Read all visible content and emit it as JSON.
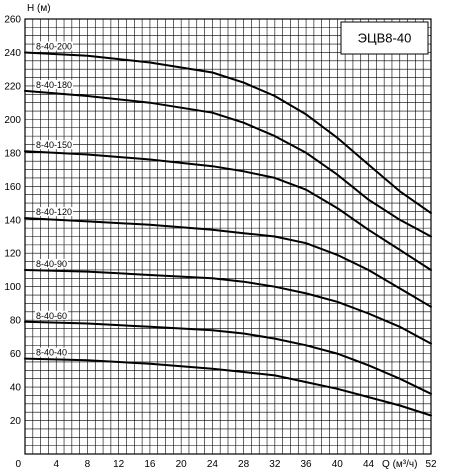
{
  "chart_data": {
    "type": "line",
    "title": "ЭЦВ8-40",
    "xlabel": "Q (м³/ч)",
    "ylabel": "H (м)",
    "xlim": [
      0,
      52
    ],
    "ylim": [
      0,
      260
    ],
    "x_ticks": [
      0,
      4,
      8,
      12,
      16,
      20,
      24,
      28,
      32,
      36,
      40,
      44,
      48,
      52
    ],
    "x_tick_labels": [
      "0",
      "4",
      "8",
      "12",
      "16",
      "20",
      "24",
      "28",
      "32",
      "36",
      "40",
      "44",
      "Q (м³/ч)",
      "52"
    ],
    "y_ticks": [
      20,
      40,
      60,
      80,
      100,
      120,
      140,
      160,
      180,
      200,
      220,
      240,
      260
    ],
    "grid": true,
    "series": [
      {
        "name": "8-40-200",
        "x": [
          0,
          8,
          16,
          24,
          28,
          32,
          36,
          40,
          44,
          48,
          52
        ],
        "y": [
          240,
          238,
          234,
          228,
          222,
          214,
          203,
          189,
          173,
          157,
          144
        ]
      },
      {
        "name": "8-40-180",
        "x": [
          0,
          8,
          16,
          24,
          28,
          32,
          36,
          40,
          44,
          48,
          52
        ],
        "y": [
          217,
          214,
          210,
          204,
          198,
          190,
          180,
          167,
          152,
          140,
          130
        ]
      },
      {
        "name": "8-40-150",
        "x": [
          0,
          8,
          16,
          24,
          28,
          32,
          36,
          40,
          44,
          48,
          52
        ],
        "y": [
          181,
          179,
          176,
          172,
          169,
          165,
          158,
          147,
          134,
          122,
          110
        ]
      },
      {
        "name": "8-40-120",
        "x": [
          0,
          8,
          16,
          24,
          28,
          32,
          36,
          40,
          44,
          48,
          52
        ],
        "y": [
          141,
          139,
          137,
          134,
          132,
          130,
          126,
          119,
          110,
          99,
          88
        ]
      },
      {
        "name": "8-40-90",
        "x": [
          0,
          8,
          16,
          24,
          28,
          32,
          36,
          40,
          44,
          48,
          52
        ],
        "y": [
          110,
          109,
          107,
          105,
          103,
          100,
          96,
          91,
          84,
          76,
          66
        ]
      },
      {
        "name": "8-40-60",
        "x": [
          0,
          8,
          16,
          24,
          28,
          32,
          36,
          40,
          44,
          48,
          52
        ],
        "y": [
          79,
          78,
          76,
          74,
          72,
          69,
          65,
          60,
          53,
          45,
          36
        ]
      },
      {
        "name": "8-40-40",
        "x": [
          0,
          8,
          16,
          24,
          28,
          32,
          36,
          40,
          44,
          48,
          52
        ],
        "y": [
          57,
          56,
          54,
          51,
          49,
          47,
          43,
          39,
          34,
          29,
          23
        ]
      }
    ]
  }
}
